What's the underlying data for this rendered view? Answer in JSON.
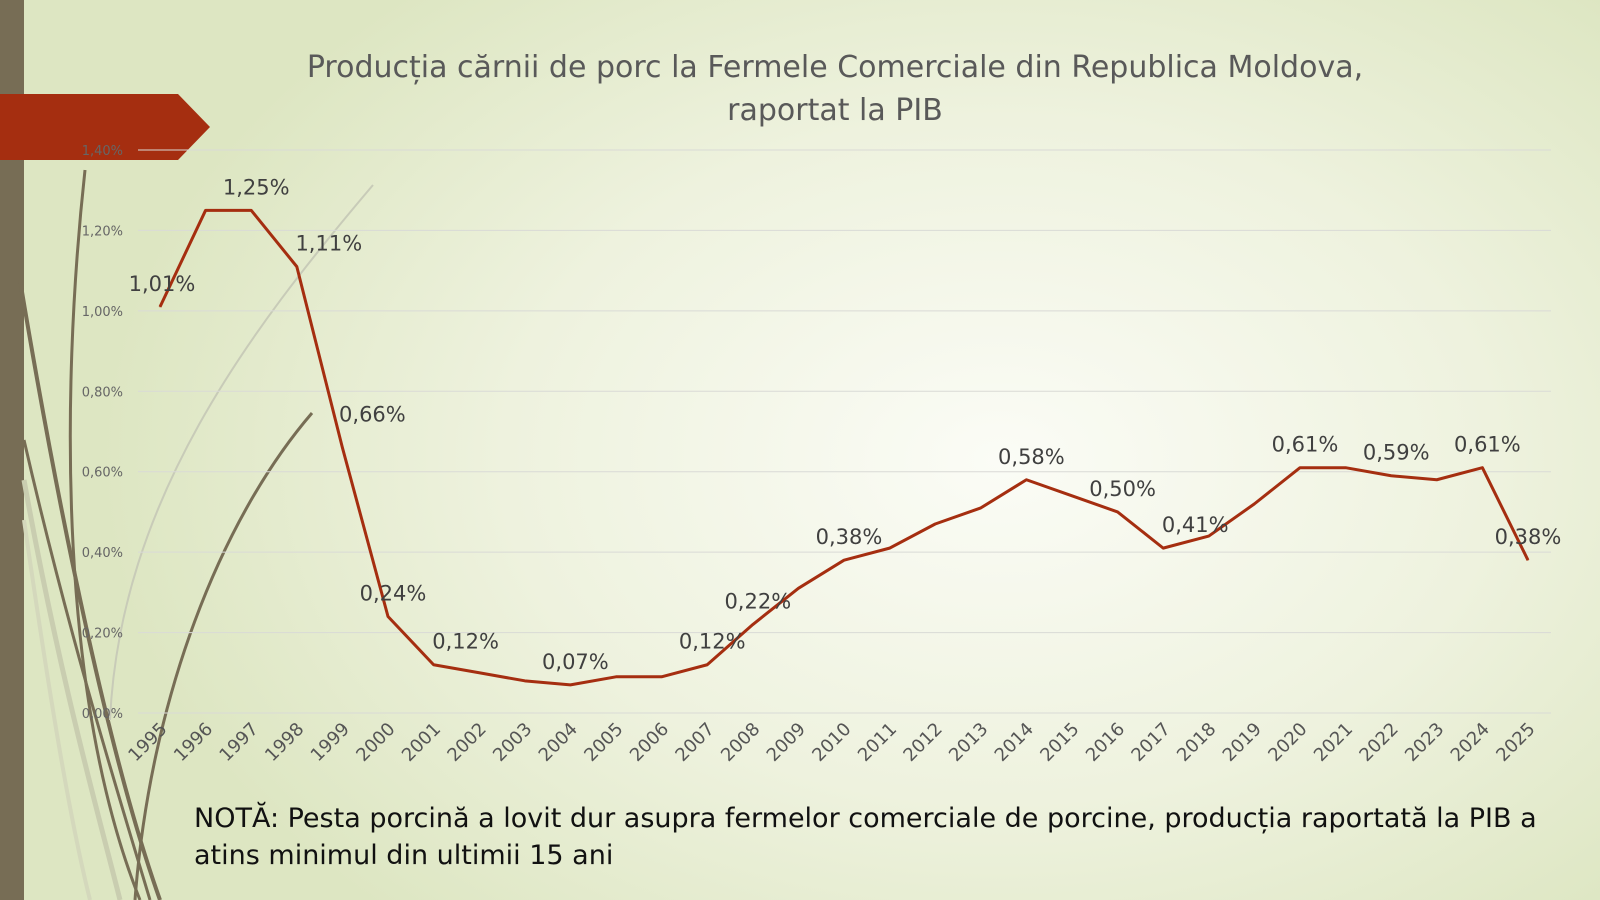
{
  "chart_data": {
    "type": "line",
    "title": "Producția cărnii de porc la Fermele Comerciale din Republica Moldova, raportat la PIB",
    "title_lines": [
      "Producția cărnii de porc la Fermele Comerciale din Republica Moldova,",
      "raportat la PIB"
    ],
    "xlabel": "",
    "ylabel": "",
    "ylim": [
      0,
      1.4
    ],
    "y_ticks": [
      "0,00%",
      "0,20%",
      "0,40%",
      "0,60%",
      "0,80%",
      "1,00%",
      "1,20%",
      "1,40%"
    ],
    "grid": true,
    "legend": "none",
    "line_color": "#a52e10",
    "categories": [
      "1995",
      "1996",
      "1997",
      "1998",
      "1999",
      "2000",
      "2001",
      "2002",
      "2003",
      "2004",
      "2005",
      "2006",
      "2007",
      "2008",
      "2009",
      "2010",
      "2011",
      "2012",
      "2013",
      "2014",
      "2015",
      "2016",
      "2017",
      "2018",
      "2019",
      "2020",
      "2021",
      "2022",
      "2023",
      "2024",
      "2025"
    ],
    "values": [
      1.01,
      1.25,
      1.25,
      1.11,
      0.66,
      0.24,
      0.12,
      0.1,
      0.08,
      0.07,
      0.09,
      0.09,
      0.12,
      0.22,
      0.31,
      0.38,
      0.41,
      0.47,
      0.51,
      0.58,
      0.54,
      0.5,
      0.41,
      0.44,
      0.52,
      0.61,
      0.61,
      0.59,
      0.58,
      0.61,
      0.38
    ],
    "data_labels": [
      {
        "year": "1995",
        "text": "1,01%"
      },
      {
        "year": "1997",
        "text": "1,25%"
      },
      {
        "year": "1998",
        "text": "1,11%"
      },
      {
        "year": "1999",
        "text": "0,66%"
      },
      {
        "year": "2000",
        "text": "0,24%"
      },
      {
        "year": "2001",
        "text": "0,12%"
      },
      {
        "year": "2004",
        "text": "0,07%"
      },
      {
        "year": "2007",
        "text": "0,12%"
      },
      {
        "year": "2008",
        "text": "0,22%"
      },
      {
        "year": "2010",
        "text": "0,38%"
      },
      {
        "year": "2014",
        "text": "0,58%"
      },
      {
        "year": "2016",
        "text": "0,50%"
      },
      {
        "year": "2017",
        "text": "0,41%"
      },
      {
        "year": "2020",
        "text": "0,61%"
      },
      {
        "year": "2022",
        "text": "0,59%"
      },
      {
        "year": "2024",
        "text": "0,61%"
      },
      {
        "year": "2025",
        "text": "0,38%"
      }
    ]
  },
  "note": "NOTĂ: Pesta porcină a lovit dur asupra fermelor comerciale de porcine, producția raportată la PIB a atins minimul din ultimii 15 ani"
}
